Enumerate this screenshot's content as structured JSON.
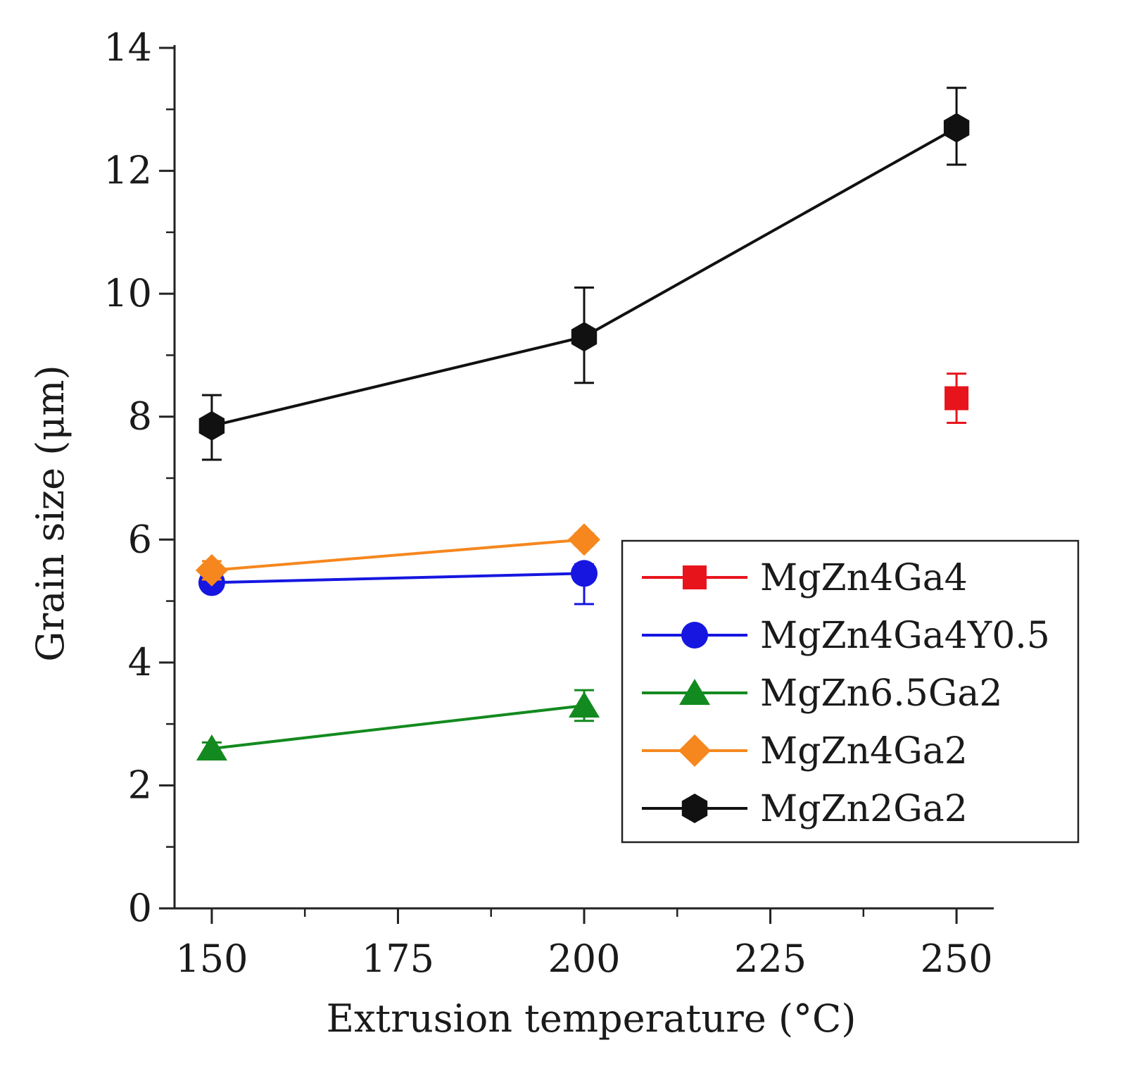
{
  "chart_data": {
    "type": "line",
    "title": "",
    "xlabel": "Extrusion temperature (°C)",
    "ylabel": "Grain size (μm)",
    "xlim": [
      145,
      255
    ],
    "ylim": [
      0,
      14
    ],
    "x_major_ticks": [
      150,
      175,
      200,
      225,
      250
    ],
    "x_tick_labels": [
      "150",
      "175",
      "200",
      "225",
      "250"
    ],
    "x_minor_ticks": [
      162.5,
      187.5,
      212.5,
      237.5
    ],
    "y_major_ticks": [
      0,
      2,
      4,
      6,
      8,
      10,
      12,
      14
    ],
    "y_tick_labels": [
      "0",
      "2",
      "4",
      "6",
      "8",
      "10",
      "12",
      "14"
    ],
    "y_minor_ticks": [
      1,
      3,
      5,
      7,
      9,
      11,
      13
    ],
    "grid": false,
    "legend_position": "right-middle",
    "series": [
      {
        "name": "MgZn4Ga4",
        "color": "#e8141c",
        "marker": "square",
        "x": [
          250
        ],
        "values": [
          8.3
        ],
        "err_plus": [
          0.4
        ],
        "err_minus": [
          0.4
        ]
      },
      {
        "name": "MgZn4Ga4Y0.5",
        "color": "#1616e0",
        "marker": "circle",
        "x": [
          150,
          200
        ],
        "values": [
          5.3,
          5.45
        ],
        "err_plus": [
          0.1,
          0.15
        ],
        "err_minus": [
          0.1,
          0.5
        ]
      },
      {
        "name": "MgZn6.5Ga2",
        "color": "#138a1f",
        "marker": "triangle",
        "x": [
          150,
          200
        ],
        "values": [
          2.6,
          3.3
        ],
        "err_plus": [
          0.1,
          0.25
        ],
        "err_minus": [
          0.1,
          0.25
        ]
      },
      {
        "name": "MgZn4Ga2",
        "color": "#f5871e",
        "marker": "diamond",
        "x": [
          150,
          200
        ],
        "values": [
          5.5,
          6.0
        ],
        "err_plus": [
          0.15,
          0.1
        ],
        "err_minus": [
          0.15,
          0.1
        ]
      },
      {
        "name": "MgZn2Ga2",
        "color": "#111111",
        "marker": "hexagon",
        "x": [
          150,
          200,
          250
        ],
        "values": [
          7.85,
          9.3,
          12.7
        ],
        "err_plus": [
          0.5,
          0.8,
          0.65
        ],
        "err_minus": [
          0.55,
          0.75,
          0.6
        ]
      }
    ]
  }
}
